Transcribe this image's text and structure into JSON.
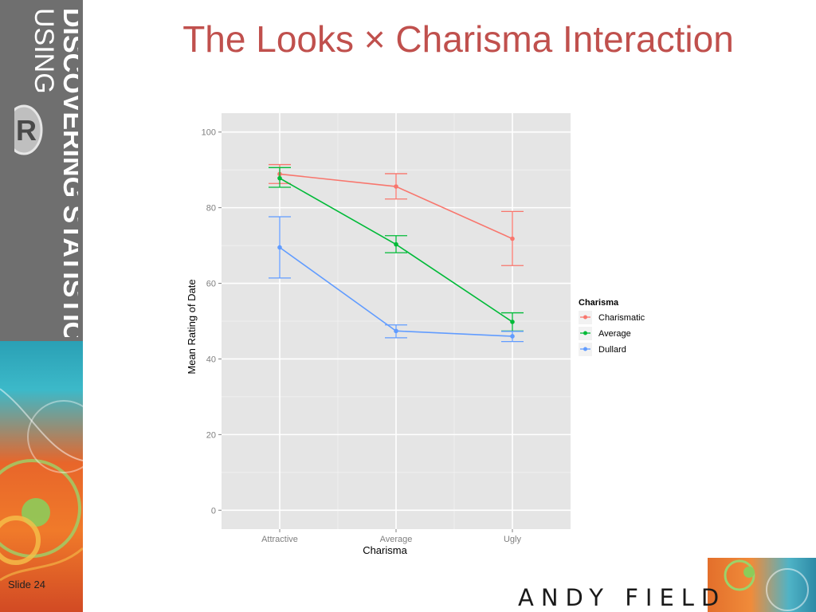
{
  "slide": {
    "title": "The Looks × Charisma Interaction",
    "slide_number": "Slide 24",
    "brand": {
      "line1": "DISCOVERING STATISTICS",
      "line2": "USING",
      "badge": "R"
    },
    "author": "ANDY FIELD"
  },
  "colors": {
    "title": "#c0504d",
    "charismatic": "#f8766d",
    "average": "#00ba38",
    "dullard": "#619cff",
    "panel": "#e5e5e5"
  },
  "chart_data": {
    "type": "line",
    "xlabel": "Charisma",
    "ylabel": "Mean Rating of Date",
    "categories": [
      "Attractive",
      "Average",
      "Ugly"
    ],
    "ylim": [
      -5,
      105
    ],
    "yticks": [
      0,
      20,
      40,
      60,
      80,
      100
    ],
    "grid": true,
    "legend": {
      "title": "Charisma",
      "position": "right"
    },
    "series": [
      {
        "name": "Charismatic",
        "color": "#f8766d",
        "values": [
          88.9,
          85.6,
          71.8
        ],
        "lower": [
          86.4,
          82.3,
          64.7
        ],
        "upper": [
          91.4,
          89.0,
          79.0
        ]
      },
      {
        "name": "Average",
        "color": "#00ba38",
        "values": [
          87.8,
          70.3,
          49.8
        ],
        "lower": [
          85.4,
          68.1,
          47.4
        ],
        "upper": [
          90.6,
          72.6,
          52.2
        ]
      },
      {
        "name": "Dullard",
        "color": "#619cff",
        "values": [
          69.5,
          47.4,
          46.0
        ],
        "lower": [
          61.4,
          45.6,
          44.6
        ],
        "upper": [
          77.6,
          49.0,
          47.3
        ]
      }
    ]
  }
}
